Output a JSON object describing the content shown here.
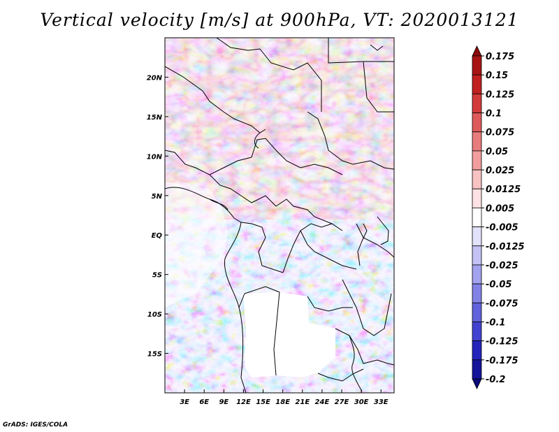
{
  "title": "Vertical velocity [m/s] at 900hPa, VT: 2020013121",
  "footer": "GrADS: IGES/COLA",
  "map": {
    "lon_range": [
      0,
      35
    ],
    "lat_range": [
      -20,
      25
    ],
    "lat_ticks": [
      {
        "value": 20,
        "label": "20N"
      },
      {
        "value": 15,
        "label": "15N"
      },
      {
        "value": 10,
        "label": "10N"
      },
      {
        "value": 5,
        "label": "5N"
      },
      {
        "value": 0,
        "label": "EQ"
      },
      {
        "value": -5,
        "label": "5S"
      },
      {
        "value": -10,
        "label": "10S"
      },
      {
        "value": -15,
        "label": "15S"
      }
    ],
    "lon_ticks": [
      {
        "value": 3,
        "label": "3E"
      },
      {
        "value": 6,
        "label": "6E"
      },
      {
        "value": 9,
        "label": "9E"
      },
      {
        "value": 12,
        "label": "12E"
      },
      {
        "value": 15,
        "label": "15E"
      },
      {
        "value": 18,
        "label": "18E"
      },
      {
        "value": 21,
        "label": "21E"
      },
      {
        "value": 24,
        "label": "24E"
      },
      {
        "value": 27,
        "label": "27E"
      },
      {
        "value": 30,
        "label": "30E"
      },
      {
        "value": 33,
        "label": "33E"
      }
    ]
  },
  "colorbar": {
    "labels": [
      "0.175",
      "0.15",
      "0.125",
      "0.1",
      "0.075",
      "0.05",
      "0.025",
      "0.0125",
      "0.005",
      "-0.005",
      "-0.0125",
      "-0.025",
      "-0.05",
      "-0.075",
      "-0.1",
      "-0.125",
      "-0.175",
      "-0.2"
    ],
    "colors": [
      "#8c0a0a",
      "#a81414",
      "#c02020",
      "#d23a3a",
      "#de5a5a",
      "#e87c7c",
      "#f29e9e",
      "#f8c2c2",
      "#fce2e2",
      "#ffffff",
      "#e2e2fb",
      "#c2c2f5",
      "#a2a2ee",
      "#8282e6",
      "#6262dc",
      "#4242d0",
      "#2424bc",
      "#14149a",
      "#0a0a78"
    ]
  }
}
